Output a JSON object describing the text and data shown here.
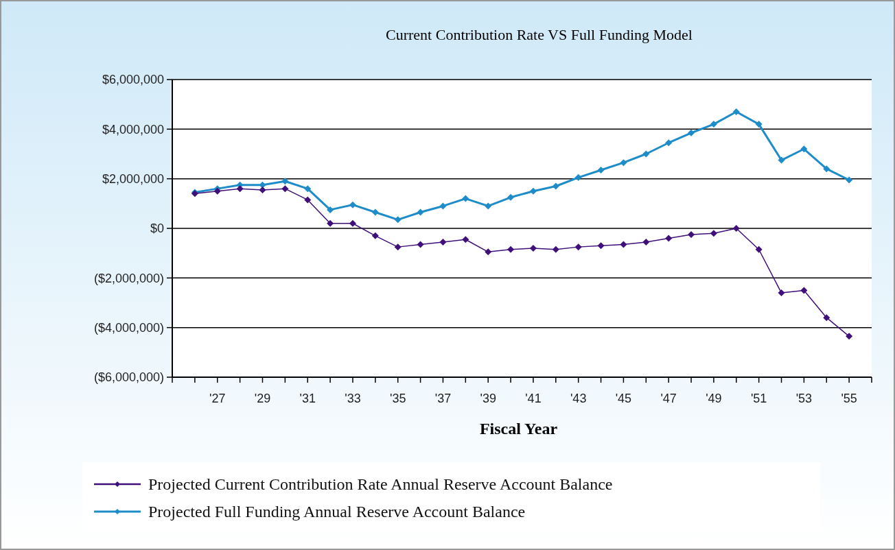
{
  "chart_data": {
    "type": "line",
    "title": "Current Contribution Rate VS Full Funding Model",
    "xlabel": "Fiscal Year",
    "categories": [
      null,
      "'27",
      null,
      "'29",
      null,
      "'31",
      null,
      "'33",
      null,
      "'35",
      null,
      "'37",
      null,
      "'39",
      null,
      "'41",
      null,
      "'43",
      null,
      "'45",
      null,
      "'47",
      null,
      "'49",
      null,
      "'51",
      null,
      "'53",
      null,
      "'55"
    ],
    "series": [
      {
        "name": "Projected Current Contribution Rate Annual Reserve Account Balance",
        "color": "#3f0f7a",
        "values": [
          1400000,
          1500000,
          1600000,
          1550000,
          1600000,
          1150000,
          200000,
          200000,
          -300000,
          -750000,
          -650000,
          -550000,
          -450000,
          -950000,
          -850000,
          -800000,
          -850000,
          -750000,
          -700000,
          -650000,
          -550000,
          -400000,
          -250000,
          -200000,
          0,
          -850000,
          -2600000,
          -2500000,
          -3600000,
          -4350000
        ]
      },
      {
        "name": "Projected Full Funding Annual Reserve Account Balance",
        "color": "#1e8cc8",
        "values": [
          1450000,
          1600000,
          1750000,
          1750000,
          1900000,
          1600000,
          750000,
          950000,
          650000,
          350000,
          650000,
          900000,
          1200000,
          900000,
          1250000,
          1500000,
          1700000,
          2050000,
          2350000,
          2650000,
          3000000,
          3450000,
          3850000,
          4200000,
          4700000,
          4200000,
          2750000,
          3200000,
          2400000,
          1950000
        ]
      }
    ],
    "ylim": [
      -6000000,
      6000000
    ],
    "yticks": [
      {
        "value": -6000000,
        "label": "($6,000,000)"
      },
      {
        "value": -4000000,
        "label": "($4,000,000)"
      },
      {
        "value": -2000000,
        "label": "($2,000,000)"
      },
      {
        "value": 0,
        "label": "$0"
      },
      {
        "value": 2000000,
        "label": "$2,000,000"
      },
      {
        "value": 4000000,
        "label": "$4,000,000"
      },
      {
        "value": 6000000,
        "label": "$6,000,000"
      }
    ],
    "grid": "y",
    "legend": "bottom",
    "marker": "diamond",
    "line_style": "solid"
  }
}
